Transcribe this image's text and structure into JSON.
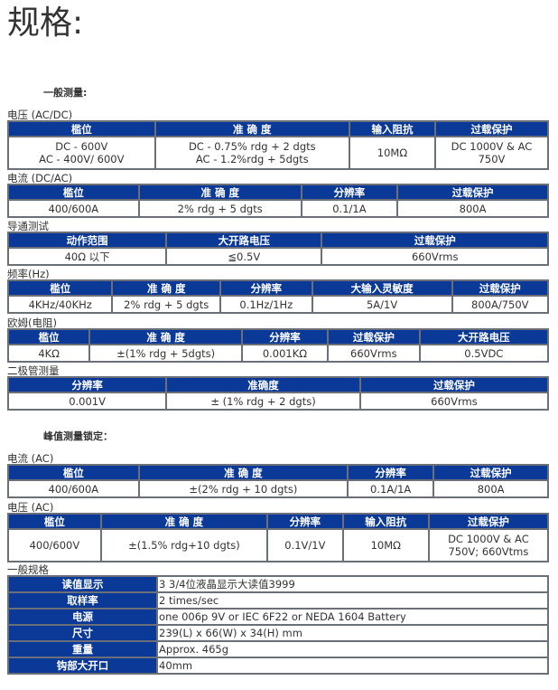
{
  "page_title": "规格:",
  "heading_general": "一般测量:",
  "heading_peak": "峰值测量锁定：",
  "colors": {
    "header_bg": "#0b3997",
    "header_text": "#ffffff",
    "border": "#6b6f78"
  },
  "sections": [
    {
      "label": "电压 (AC/DC)",
      "headers": [
        "槛位",
        "准 确 度",
        "输入阻抗",
        "过载保护"
      ],
      "rows": [
        [
          "DC - 600V\nAC - 400V/ 600V",
          "DC - 0.75% rdg + 2 dgts\nAC - 1.2%rdg + 5dgts",
          "10MΩ",
          "DC 1000V & AC 750V"
        ]
      ]
    },
    {
      "label": "电流 (DC/AC)",
      "headers": [
        "槛位",
        "准 确 度",
        "分辨率",
        "过载保护"
      ],
      "rows": [
        [
          "400/600A",
          "2% rdg + 5 dgts",
          "0.1/1A",
          "800A"
        ]
      ]
    },
    {
      "label": "导通测试",
      "headers": [
        "动作范围",
        "大开路电压",
        "过载保护"
      ],
      "rows": [
        [
          "40Ω 以下",
          "≦0.5V",
          "660Vrms"
        ]
      ]
    },
    {
      "label": "频率(Hz)",
      "headers": [
        "槛位",
        "准 确 度",
        "分辨率",
        "大输入灵敏度",
        "过载保护"
      ],
      "rows": [
        [
          "4KHz/40KHz",
          "2% rdg + 5 dgts",
          "0.1Hz/1Hz",
          "5A/1V",
          "800A/750V"
        ]
      ]
    },
    {
      "label": "欧姆(电阻)",
      "headers": [
        "槛位",
        "准 确 度",
        "分辨率",
        "过载保护",
        "大开路电压"
      ],
      "rows": [
        [
          "4KΩ",
          "±(1% rdg + 5dgts)",
          "0.001KΩ",
          "660Vrms",
          "0.5VDC"
        ]
      ]
    },
    {
      "label": "二极管测量",
      "headers": [
        "分辨率",
        "准确度",
        "过载保护"
      ],
      "rows": [
        [
          "0.001V",
          "± (1% rdg + 2 dgts)",
          "660Vrms"
        ]
      ]
    },
    {
      "label": "电流 (AC)",
      "headers": [
        "槛位",
        "准 确 度",
        "分辨率",
        "过载保护"
      ],
      "rows": [
        [
          "400/600A",
          "±(2% rdg + 10 dgts)",
          "0.1A/1A",
          "800A"
        ]
      ]
    },
    {
      "label": "电压 (AC)",
      "headers": [
        "槛位",
        "准 确 度",
        "分辨率",
        "输入阻抗",
        "过载保护"
      ],
      "rows": [
        [
          "400/600V",
          "±(1.5% rdg+10 dgts)",
          "0.1V/1V",
          "10MΩ",
          "DC 1000V & AC 750V; 660Vtms"
        ]
      ]
    }
  ],
  "general_specs": {
    "label": "一般规格",
    "rows": [
      [
        "读值显示",
        "3 3/4位液晶显示大读值3999"
      ],
      [
        "取样率",
        "2 times/sec"
      ],
      [
        "电源",
        "one 006p 9V or IEC 6F22 or NEDA 1604 Battery"
      ],
      [
        "尺寸",
        "239(L) x 66(W) x 34(H) mm"
      ],
      [
        "重量",
        "Approx. 465g"
      ],
      [
        "钩部大开口",
        "40mm"
      ]
    ]
  }
}
